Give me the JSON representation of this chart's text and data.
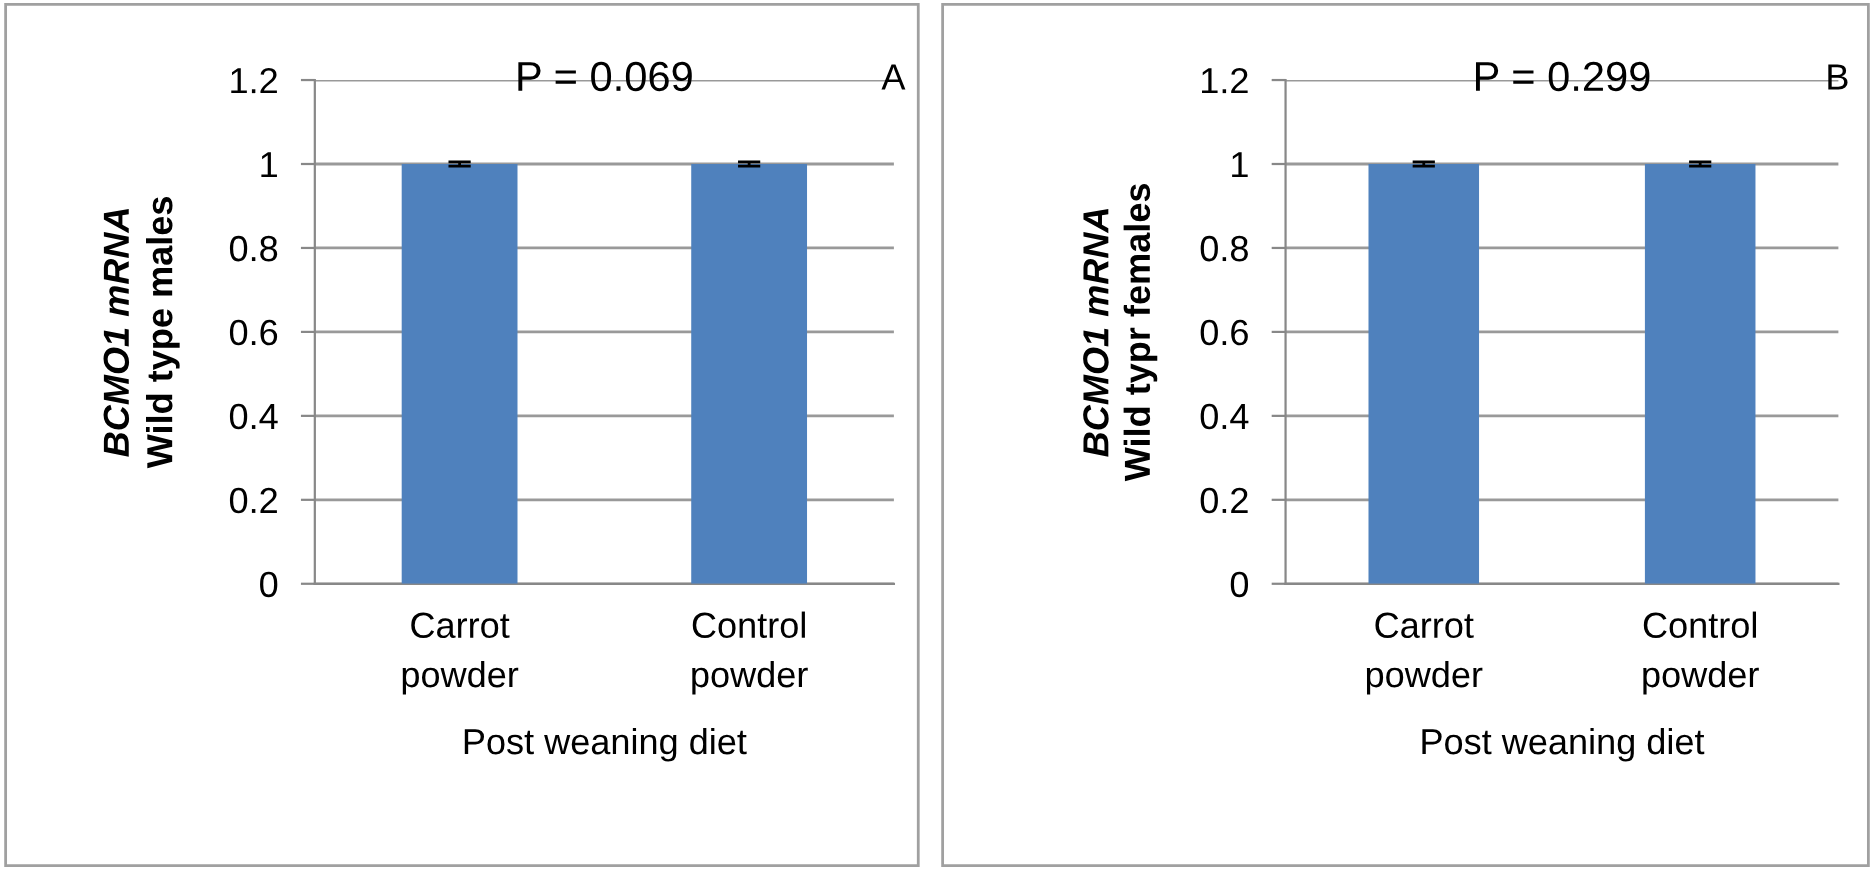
{
  "chart_data": [
    {
      "type": "bar",
      "categories": [
        "Carrot\npowder",
        "Control\npowder"
      ],
      "values": [
        1,
        1
      ],
      "errors": [
        0.005,
        0.005
      ],
      "color": "#4f81bd",
      "ylim": [
        0,
        1.2
      ],
      "yticks": [
        0,
        0.2,
        0.4,
        0.6,
        0.8,
        1,
        1.2
      ],
      "ylabel": "BCMO1 mRNA\nWild type males",
      "xlabel": "Post weaning diet",
      "annotations": [
        "P = 0.069",
        "A"
      ],
      "grid": "y"
    },
    {
      "type": "bar",
      "categories": [
        "Carrot\npowder",
        "Control\npowder"
      ],
      "values": [
        1,
        1
      ],
      "errors": [
        0.005,
        0.005
      ],
      "color": "#4f81bd",
      "ylim": [
        0,
        1.2
      ],
      "yticks": [
        0,
        0.2,
        0.4,
        0.6,
        0.8,
        1,
        1.2
      ],
      "ylabel": "BCMO1 mRNA\nWild typr females",
      "xlabel": "Post weaning diet",
      "annotations": [
        "P = 0.299",
        "B"
      ],
      "grid": "y"
    }
  ]
}
